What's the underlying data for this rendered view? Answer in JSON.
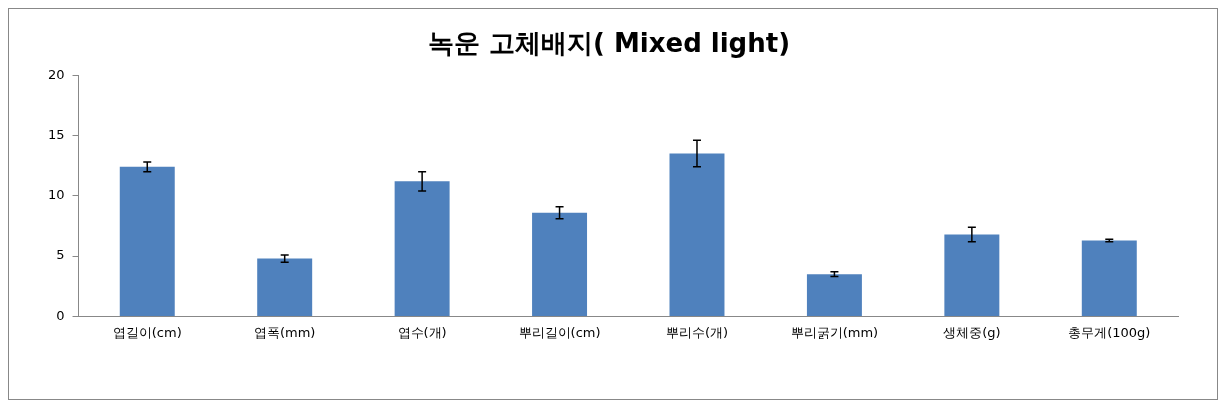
{
  "chart_data": {
    "type": "bar",
    "title": "녹운 고체배지( Mixed light)",
    "categories": [
      "엽길이(cm)",
      "엽폭(mm)",
      "엽수(개)",
      "뿌리길이(cm)",
      "뿌리수(개)",
      "뿌리굵기(mm)",
      "생체중(g)",
      "총무게(100g)"
    ],
    "values": [
      12.4,
      4.8,
      11.2,
      8.6,
      13.5,
      3.5,
      6.8,
      6.3
    ],
    "errors": [
      0.4,
      0.3,
      0.8,
      0.5,
      1.1,
      0.2,
      0.6,
      0.1
    ],
    "color": "#4f81bd",
    "ylim": [
      0,
      20
    ],
    "yticks": [
      0,
      5,
      10,
      15,
      20
    ],
    "grid": false,
    "legend": false
  }
}
